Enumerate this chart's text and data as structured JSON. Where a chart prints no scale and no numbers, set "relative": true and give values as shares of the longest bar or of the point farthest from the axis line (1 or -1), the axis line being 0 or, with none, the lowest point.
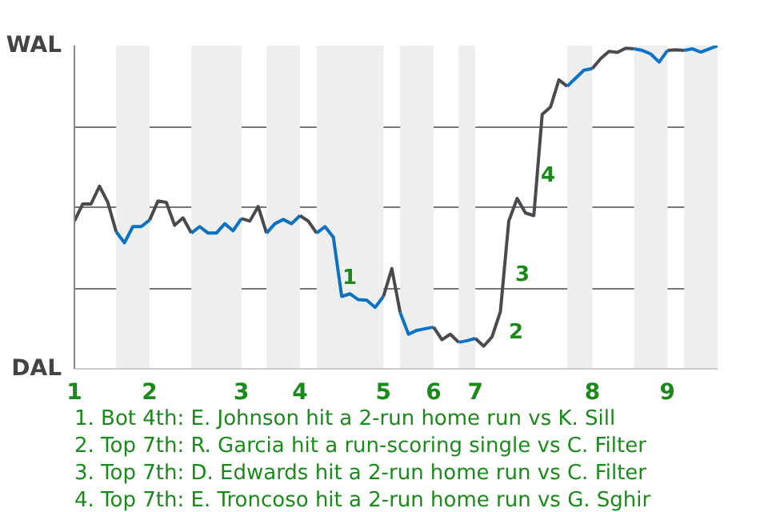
{
  "chart_data": {
    "type": "line",
    "relative": true,
    "categories": [
      "1",
      null,
      null,
      null,
      null,
      null,
      null,
      null,
      null,
      "2",
      null,
      null,
      null,
      null,
      null,
      null,
      null,
      null,
      null,
      null,
      "3",
      null,
      null,
      null,
      null,
      null,
      null,
      "4",
      null,
      null,
      null,
      null,
      null,
      null,
      null,
      null,
      null,
      "5",
      null,
      null,
      null,
      null,
      null,
      "6",
      null,
      null,
      null,
      null,
      "7",
      null,
      null,
      null,
      null,
      null,
      null,
      null,
      null,
      null,
      null,
      null,
      null,
      null,
      "8",
      null,
      null,
      null,
      null,
      null,
      null,
      null,
      null,
      "9",
      null,
      null,
      null,
      null,
      null,
      null
    ],
    "series": [
      {
        "color": "#4a4a4a",
        "values": [
          0.457,
          0.51,
          0.51,
          0.565,
          0.515,
          0.424,
          null,
          null,
          null,
          null,
          null,
          null,
          null,
          null,
          null,
          null,
          null,
          null,
          null,
          null,
          null,
          null,
          null,
          null,
          null,
          null,
          null,
          null,
          null,
          null,
          null,
          null,
          null,
          null,
          null,
          null,
          null,
          null,
          null,
          null,
          null,
          null,
          null,
          null,
          null,
          null,
          null,
          null,
          null,
          null,
          null,
          null,
          null,
          null,
          null,
          null,
          null,
          null,
          null,
          null,
          null,
          null,
          null,
          null,
          null,
          null,
          null,
          null,
          null,
          null,
          null,
          null,
          null,
          null,
          null,
          null,
          null,
          null
        ]
      },
      {
        "color": "#0b72c0",
        "values": [
          null,
          null,
          null,
          null,
          null,
          0.424,
          0.39,
          0.44,
          0.44,
          0.46,
          null,
          null,
          null,
          null,
          null,
          null,
          null,
          null,
          null,
          null,
          null,
          null,
          null,
          null,
          null,
          null,
          null,
          null,
          null,
          null,
          null,
          null,
          null,
          null,
          null,
          null,
          null,
          null,
          null,
          null,
          null,
          null,
          null,
          null,
          null,
          null,
          null,
          null,
          null,
          null,
          null,
          null,
          null,
          null,
          null,
          null,
          null,
          null,
          null,
          null,
          null,
          null,
          null,
          null,
          null,
          null,
          null,
          null,
          null,
          null,
          null,
          null,
          null,
          null,
          null,
          null,
          null,
          null
        ]
      },
      {
        "color": "#4a4a4b",
        "values": [
          null,
          null,
          null,
          null,
          null,
          null,
          null,
          null,
          null,
          0.46,
          0.519,
          0.515,
          0.444,
          0.467,
          0.42,
          null,
          null,
          null,
          null,
          null,
          null,
          null,
          null,
          null,
          null,
          null,
          null,
          null,
          null,
          null,
          null,
          null,
          null,
          null,
          null,
          null,
          null,
          null,
          null,
          null,
          null,
          null,
          null,
          null,
          null,
          null,
          null,
          null,
          null,
          null,
          null,
          null,
          null,
          null,
          null,
          null,
          null,
          null,
          null,
          null,
          null,
          null,
          null,
          null,
          null,
          null,
          null,
          null,
          null,
          null,
          null,
          null,
          null,
          null,
          null,
          null,
          null,
          null
        ]
      },
      {
        "color": "#0b72c1",
        "values": [
          null,
          null,
          null,
          null,
          null,
          null,
          null,
          null,
          null,
          null,
          null,
          null,
          null,
          null,
          0.42,
          0.44,
          0.42,
          0.42,
          0.449,
          0.427,
          0.465,
          null,
          null,
          null,
          null,
          null,
          null,
          null,
          null,
          null,
          null,
          null,
          null,
          null,
          null,
          null,
          null,
          null,
          null,
          null,
          null,
          null,
          null,
          null,
          null,
          null,
          null,
          null,
          null,
          null,
          null,
          null,
          null,
          null,
          null,
          null,
          null,
          null,
          null,
          null,
          null,
          null,
          null,
          null,
          null,
          null,
          null,
          null,
          null,
          null,
          null,
          null,
          null,
          null,
          null,
          null,
          null,
          null
        ]
      },
      {
        "color": "#4a4a4c",
        "values": [
          null,
          null,
          null,
          null,
          null,
          null,
          null,
          null,
          null,
          null,
          null,
          null,
          null,
          null,
          null,
          null,
          null,
          null,
          null,
          null,
          0.465,
          0.457,
          0.502,
          0.42,
          null,
          null,
          null,
          null,
          null,
          null,
          null,
          null,
          null,
          null,
          null,
          null,
          null,
          null,
          null,
          null,
          null,
          null,
          null,
          null,
          null,
          null,
          null,
          null,
          null,
          null,
          null,
          null,
          null,
          null,
          null,
          null,
          null,
          null,
          null,
          null,
          null,
          null,
          null,
          null,
          null,
          null,
          null,
          null,
          null,
          null,
          null,
          null,
          null,
          null,
          null,
          null,
          null,
          null
        ]
      },
      {
        "color": "#0b72c2",
        "values": [
          null,
          null,
          null,
          null,
          null,
          null,
          null,
          null,
          null,
          null,
          null,
          null,
          null,
          null,
          null,
          null,
          null,
          null,
          null,
          null,
          null,
          null,
          null,
          0.42,
          0.449,
          0.462,
          0.449,
          0.474,
          null,
          null,
          null,
          null,
          null,
          null,
          null,
          null,
          null,
          null,
          null,
          null,
          null,
          null,
          null,
          null,
          null,
          null,
          null,
          null,
          null,
          null,
          null,
          null,
          null,
          null,
          null,
          null,
          null,
          null,
          null,
          null,
          null,
          null,
          null,
          null,
          null,
          null,
          null,
          null,
          null,
          null,
          null,
          null,
          null,
          null,
          null,
          null,
          null,
          null
        ]
      },
      {
        "color": "#4a4a4d",
        "values": [
          null,
          null,
          null,
          null,
          null,
          null,
          null,
          null,
          null,
          null,
          null,
          null,
          null,
          null,
          null,
          null,
          null,
          null,
          null,
          null,
          null,
          null,
          null,
          null,
          null,
          null,
          null,
          0.474,
          0.457,
          0.42,
          null,
          null,
          null,
          null,
          null,
          null,
          null,
          null,
          null,
          null,
          null,
          null,
          null,
          null,
          null,
          null,
          null,
          null,
          null,
          null,
          null,
          null,
          null,
          null,
          null,
          null,
          null,
          null,
          null,
          null,
          null,
          null,
          null,
          null,
          null,
          null,
          null,
          null,
          null,
          null,
          null,
          null,
          null,
          null,
          null,
          null,
          null,
          null
        ]
      },
      {
        "color": "#0b72c3",
        "values": [
          null,
          null,
          null,
          null,
          null,
          null,
          null,
          null,
          null,
          null,
          null,
          null,
          null,
          null,
          null,
          null,
          null,
          null,
          null,
          null,
          null,
          null,
          null,
          null,
          null,
          null,
          null,
          null,
          null,
          0.42,
          0.44,
          0.407,
          0.224,
          0.232,
          0.214,
          0.212,
          0.19,
          0.224,
          null,
          null,
          null,
          null,
          null,
          null,
          null,
          null,
          null,
          null,
          null,
          null,
          null,
          null,
          null,
          null,
          null,
          null,
          null,
          null,
          null,
          null,
          null,
          null,
          null,
          null,
          null,
          null,
          null,
          null,
          null,
          null,
          null,
          null,
          null,
          null,
          null,
          null,
          null,
          null
        ]
      },
      {
        "color": "#4a4a4e",
        "values": [
          null,
          null,
          null,
          null,
          null,
          null,
          null,
          null,
          null,
          null,
          null,
          null,
          null,
          null,
          null,
          null,
          null,
          null,
          null,
          null,
          null,
          null,
          null,
          null,
          null,
          null,
          null,
          null,
          null,
          null,
          null,
          null,
          null,
          null,
          null,
          null,
          null,
          0.224,
          0.31,
          0.174,
          null,
          null,
          null,
          null,
          null,
          null,
          null,
          null,
          null,
          null,
          null,
          null,
          null,
          null,
          null,
          null,
          null,
          null,
          null,
          null,
          null,
          null,
          null,
          null,
          null,
          null,
          null,
          null,
          null,
          null,
          null,
          null,
          null,
          null,
          null,
          null,
          null,
          null
        ]
      },
      {
        "color": "#0b72c4",
        "values": [
          null,
          null,
          null,
          null,
          null,
          null,
          null,
          null,
          null,
          null,
          null,
          null,
          null,
          null,
          null,
          null,
          null,
          null,
          null,
          null,
          null,
          null,
          null,
          null,
          null,
          null,
          null,
          null,
          null,
          null,
          null,
          null,
          null,
          null,
          null,
          null,
          null,
          null,
          null,
          0.174,
          0.107,
          0.119,
          0.124,
          0.129,
          null,
          null,
          null,
          null,
          null,
          null,
          null,
          null,
          null,
          null,
          null,
          null,
          null,
          null,
          null,
          null,
          null,
          null,
          null,
          null,
          null,
          null,
          null,
          null,
          null,
          null,
          null,
          null,
          null,
          null,
          null,
          null,
          null,
          null
        ]
      },
      {
        "color": "#4a4a4f",
        "values": [
          null,
          null,
          null,
          null,
          null,
          null,
          null,
          null,
          null,
          null,
          null,
          null,
          null,
          null,
          null,
          null,
          null,
          null,
          null,
          null,
          null,
          null,
          null,
          null,
          null,
          null,
          null,
          null,
          null,
          null,
          null,
          null,
          null,
          null,
          null,
          null,
          null,
          null,
          null,
          null,
          null,
          null,
          null,
          0.129,
          0.09,
          0.107,
          0.082,
          null,
          null,
          null,
          null,
          null,
          null,
          null,
          null,
          null,
          null,
          null,
          null,
          null,
          null,
          null,
          null,
          null,
          null,
          null,
          null,
          null,
          null,
          null,
          null,
          null,
          null,
          null,
          null,
          null,
          null,
          null
        ]
      },
      {
        "color": "#0b72c5",
        "values": [
          null,
          null,
          null,
          null,
          null,
          null,
          null,
          null,
          null,
          null,
          null,
          null,
          null,
          null,
          null,
          null,
          null,
          null,
          null,
          null,
          null,
          null,
          null,
          null,
          null,
          null,
          null,
          null,
          null,
          null,
          null,
          null,
          null,
          null,
          null,
          null,
          null,
          null,
          null,
          null,
          null,
          null,
          null,
          null,
          null,
          null,
          0.082,
          0.087,
          0.094,
          null,
          null,
          null,
          null,
          null,
          null,
          null,
          null,
          null,
          null,
          null,
          null,
          null,
          null,
          null,
          null,
          null,
          null,
          null,
          null,
          null,
          null,
          null,
          null,
          null,
          null,
          null,
          null,
          null
        ]
      },
      {
        "color": "#4a4a50",
        "values": [
          null,
          null,
          null,
          null,
          null,
          null,
          null,
          null,
          null,
          null,
          null,
          null,
          null,
          null,
          null,
          null,
          null,
          null,
          null,
          null,
          null,
          null,
          null,
          null,
          null,
          null,
          null,
          null,
          null,
          null,
          null,
          null,
          null,
          null,
          null,
          null,
          null,
          null,
          null,
          null,
          null,
          null,
          null,
          null,
          null,
          null,
          null,
          null,
          0.094,
          0.07,
          0.099,
          0.177,
          0.457,
          0.527,
          0.482,
          0.474,
          0.787,
          0.81,
          0.894,
          0.874,
          null,
          null,
          null,
          null,
          null,
          null,
          null,
          null,
          null,
          null,
          null,
          null,
          null,
          null,
          null,
          null,
          null,
          null
        ]
      },
      {
        "color": "#0b72c6",
        "values": [
          null,
          null,
          null,
          null,
          null,
          null,
          null,
          null,
          null,
          null,
          null,
          null,
          null,
          null,
          null,
          null,
          null,
          null,
          null,
          null,
          null,
          null,
          null,
          null,
          null,
          null,
          null,
          null,
          null,
          null,
          null,
          null,
          null,
          null,
          null,
          null,
          null,
          null,
          null,
          null,
          null,
          null,
          null,
          null,
          null,
          null,
          null,
          null,
          null,
          null,
          null,
          null,
          null,
          null,
          null,
          null,
          null,
          null,
          null,
          0.874,
          0.899,
          0.924,
          0.929,
          null,
          null,
          null,
          null,
          null,
          null,
          null,
          null,
          null,
          null,
          null,
          null,
          null,
          null,
          null
        ]
      },
      {
        "color": "#4a4a51",
        "values": [
          null,
          null,
          null,
          null,
          null,
          null,
          null,
          null,
          null,
          null,
          null,
          null,
          null,
          null,
          null,
          null,
          null,
          null,
          null,
          null,
          null,
          null,
          null,
          null,
          null,
          null,
          null,
          null,
          null,
          null,
          null,
          null,
          null,
          null,
          null,
          null,
          null,
          null,
          null,
          null,
          null,
          null,
          null,
          null,
          null,
          null,
          null,
          null,
          null,
          null,
          null,
          null,
          null,
          null,
          null,
          null,
          null,
          null,
          null,
          null,
          null,
          null,
          0.929,
          0.96,
          0.982,
          0.979,
          0.992,
          0.99,
          null,
          null,
          null,
          null,
          null,
          null,
          null,
          null,
          null,
          null
        ]
      },
      {
        "color": "#0b72c7",
        "values": [
          null,
          null,
          null,
          null,
          null,
          null,
          null,
          null,
          null,
          null,
          null,
          null,
          null,
          null,
          null,
          null,
          null,
          null,
          null,
          null,
          null,
          null,
          null,
          null,
          null,
          null,
          null,
          null,
          null,
          null,
          null,
          null,
          null,
          null,
          null,
          null,
          null,
          null,
          null,
          null,
          null,
          null,
          null,
          null,
          null,
          null,
          null,
          null,
          null,
          null,
          null,
          null,
          null,
          null,
          null,
          null,
          null,
          null,
          null,
          null,
          null,
          null,
          null,
          null,
          null,
          null,
          null,
          0.99,
          0.985,
          0.974,
          0.949,
          0.985,
          null,
          null,
          null,
          null,
          null,
          null
        ]
      },
      {
        "color": "#4a4a52",
        "values": [
          null,
          null,
          null,
          null,
          null,
          null,
          null,
          null,
          null,
          null,
          null,
          null,
          null,
          null,
          null,
          null,
          null,
          null,
          null,
          null,
          null,
          null,
          null,
          null,
          null,
          null,
          null,
          null,
          null,
          null,
          null,
          null,
          null,
          null,
          null,
          null,
          null,
          null,
          null,
          null,
          null,
          null,
          null,
          null,
          null,
          null,
          null,
          null,
          null,
          null,
          null,
          null,
          null,
          null,
          null,
          null,
          null,
          null,
          null,
          null,
          null,
          null,
          null,
          null,
          null,
          null,
          null,
          null,
          null,
          null,
          null,
          0.985,
          0.987,
          0.985,
          null,
          null,
          null,
          null
        ]
      },
      {
        "color": "#0b72c8",
        "values": [
          null,
          null,
          null,
          null,
          null,
          null,
          null,
          null,
          null,
          null,
          null,
          null,
          null,
          null,
          null,
          null,
          null,
          null,
          null,
          null,
          null,
          null,
          null,
          null,
          null,
          null,
          null,
          null,
          null,
          null,
          null,
          null,
          null,
          null,
          null,
          null,
          null,
          null,
          null,
          null,
          null,
          null,
          null,
          null,
          null,
          null,
          null,
          null,
          null,
          null,
          null,
          null,
          null,
          null,
          null,
          null,
          null,
          null,
          null,
          null,
          null,
          null,
          null,
          null,
          null,
          null,
          null,
          null,
          null,
          null,
          null,
          null,
          null,
          0.985,
          0.99,
          0.98,
          0.99,
          1
        ]
      }
    ],
    "grid": "y",
    "line_style": "solid",
    "annotations": [
      "WAL",
      "DAL",
      "1",
      "2",
      "3",
      "4",
      "1. Bot 4th: E. Johnson hit a 2-run home run vs K. Sill",
      "2. Top 7th: R. Garcia hit a run-scoring single vs C. Filter",
      "3. Top 7th: D. Edwards hit a 2-run home run vs C. Filter",
      "4. Top 7th: E. Troncoso hit a 2-run home run vs G. Sghir"
    ]
  }
}
